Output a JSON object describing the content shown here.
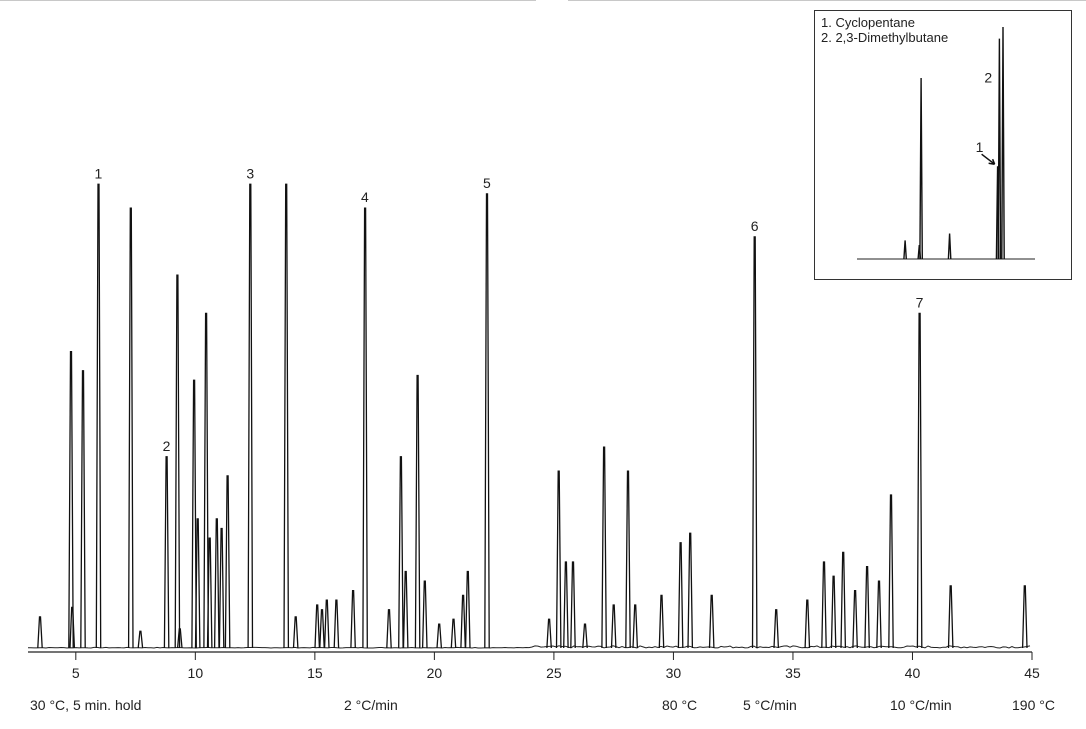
{
  "chart_data": [
    {
      "type": "line",
      "title": "",
      "xlabel": "",
      "ylabel": "",
      "xlim": [
        3,
        45
      ],
      "ylim": [
        0,
        100
      ],
      "grid": false,
      "x_ticks": [
        5,
        10,
        15,
        20,
        25,
        30,
        35,
        40,
        45
      ],
      "peaks": [
        {
          "x": 3.5,
          "y": 6.5
        },
        {
          "x": 4.8,
          "y": 62
        },
        {
          "x": 4.85,
          "y": 8.5
        },
        {
          "x": 5.3,
          "y": 58
        },
        {
          "x": 5.95,
          "y": 97,
          "label": "1"
        },
        {
          "x": 7.3,
          "y": 92
        },
        {
          "x": 7.7,
          "y": 3.5
        },
        {
          "x": 8.8,
          "y": 40,
          "label": "2"
        },
        {
          "x": 9.25,
          "y": 78
        },
        {
          "x": 9.35,
          "y": 4
        },
        {
          "x": 9.95,
          "y": 56
        },
        {
          "x": 10.1,
          "y": 27
        },
        {
          "x": 10.45,
          "y": 70
        },
        {
          "x": 10.6,
          "y": 23
        },
        {
          "x": 10.9,
          "y": 27
        },
        {
          "x": 11.1,
          "y": 25
        },
        {
          "x": 11.35,
          "y": 36
        },
        {
          "x": 12.3,
          "y": 97,
          "label": "3"
        },
        {
          "x": 13.8,
          "y": 97
        },
        {
          "x": 14.2,
          "y": 6.5
        },
        {
          "x": 15.1,
          "y": 9
        },
        {
          "x": 15.3,
          "y": 8
        },
        {
          "x": 15.5,
          "y": 10
        },
        {
          "x": 15.9,
          "y": 10
        },
        {
          "x": 16.6,
          "y": 12
        },
        {
          "x": 17.1,
          "y": 92,
          "label": "4"
        },
        {
          "x": 18.1,
          "y": 8
        },
        {
          "x": 18.6,
          "y": 40
        },
        {
          "x": 18.8,
          "y": 16
        },
        {
          "x": 19.3,
          "y": 57
        },
        {
          "x": 19.6,
          "y": 14
        },
        {
          "x": 20.2,
          "y": 5
        },
        {
          "x": 20.8,
          "y": 6
        },
        {
          "x": 21.2,
          "y": 11
        },
        {
          "x": 21.4,
          "y": 16
        },
        {
          "x": 22.2,
          "y": 95,
          "label": "5"
        },
        {
          "x": 24.8,
          "y": 6
        },
        {
          "x": 25.2,
          "y": 37
        },
        {
          "x": 25.5,
          "y": 18
        },
        {
          "x": 25.8,
          "y": 18
        },
        {
          "x": 26.3,
          "y": 5
        },
        {
          "x": 27.1,
          "y": 42
        },
        {
          "x": 27.5,
          "y": 9
        },
        {
          "x": 28.1,
          "y": 37
        },
        {
          "x": 28.4,
          "y": 9
        },
        {
          "x": 29.5,
          "y": 11
        },
        {
          "x": 30.3,
          "y": 22
        },
        {
          "x": 30.7,
          "y": 24
        },
        {
          "x": 31.6,
          "y": 11
        },
        {
          "x": 33.4,
          "y": 86,
          "label": "6"
        },
        {
          "x": 34.3,
          "y": 8
        },
        {
          "x": 35.6,
          "y": 10
        },
        {
          "x": 36.3,
          "y": 18
        },
        {
          "x": 36.7,
          "y": 15
        },
        {
          "x": 37.1,
          "y": 20
        },
        {
          "x": 37.6,
          "y": 12
        },
        {
          "x": 38.1,
          "y": 17
        },
        {
          "x": 38.6,
          "y": 14
        },
        {
          "x": 39.1,
          "y": 32
        },
        {
          "x": 40.3,
          "y": 70,
          "label": "7"
        },
        {
          "x": 41.6,
          "y": 13
        },
        {
          "x": 44.7,
          "y": 13
        }
      ],
      "program_labels": [
        "30 °C, 5 min. hold",
        "2 °C/min",
        "80 °C",
        "5 °C/min",
        "10 °C/min",
        "190 °C"
      ]
    },
    {
      "type": "line",
      "title": "",
      "legend": [
        "1. Cyclopentane",
        "2. 2,3-Dimethylbutane"
      ],
      "peaks": [
        {
          "x": 0.27,
          "y": 8
        },
        {
          "x": 0.35,
          "y": 6
        },
        {
          "x": 0.36,
          "y": 78
        },
        {
          "x": 0.52,
          "y": 11
        },
        {
          "x": 0.79,
          "y": 40,
          "label": "1"
        },
        {
          "x": 0.8,
          "y": 95,
          "label": "2"
        },
        {
          "x": 0.82,
          "y": 100
        }
      ]
    }
  ]
}
